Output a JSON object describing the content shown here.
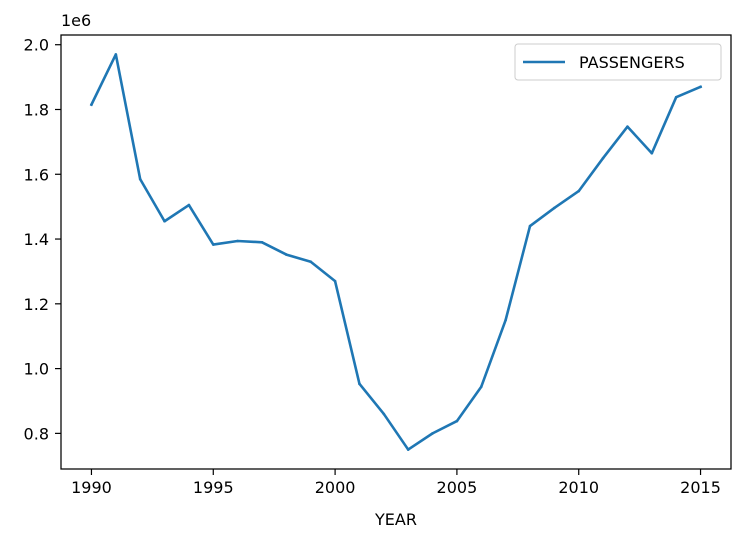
{
  "chart_data": {
    "type": "line",
    "xlabel": "YEAR",
    "ylabel": "",
    "offset_text": "1e6",
    "xlim": [
      1988.75,
      2016.25
    ],
    "ylim": [
      690000,
      2030000
    ],
    "xticks": [
      1990,
      1995,
      2000,
      2005,
      2010,
      2015
    ],
    "xtick_labels": [
      "1990",
      "1995",
      "2000",
      "2005",
      "2010",
      "2015"
    ],
    "yticks": [
      800000,
      1000000,
      1200000,
      1400000,
      1600000,
      1800000,
      2000000
    ],
    "ytick_labels": [
      "0.8",
      "1.0",
      "1.2",
      "1.4",
      "1.6",
      "1.8",
      "2.0"
    ],
    "grid": false,
    "legend_position": "top-right",
    "x": [
      1990,
      1991,
      1992,
      1993,
      1994,
      1995,
      1996,
      1997,
      1998,
      1999,
      2000,
      2001,
      2002,
      2003,
      2004,
      2005,
      2006,
      2007,
      2008,
      2009,
      2010,
      2011,
      2012,
      2013,
      2014,
      2015
    ],
    "series": [
      {
        "name": "PASSENGERS",
        "color": "#1f77b4",
        "values": [
          1815000,
          1970000,
          1585000,
          1455000,
          1505000,
          1383000,
          1394000,
          1390000,
          1352000,
          1330000,
          1270000,
          953000,
          860000,
          750000,
          800000,
          838000,
          944000,
          1150000,
          1440000,
          1496000,
          1548000,
          1650000,
          1747000,
          1665000,
          1838000,
          1870000
        ]
      }
    ]
  }
}
